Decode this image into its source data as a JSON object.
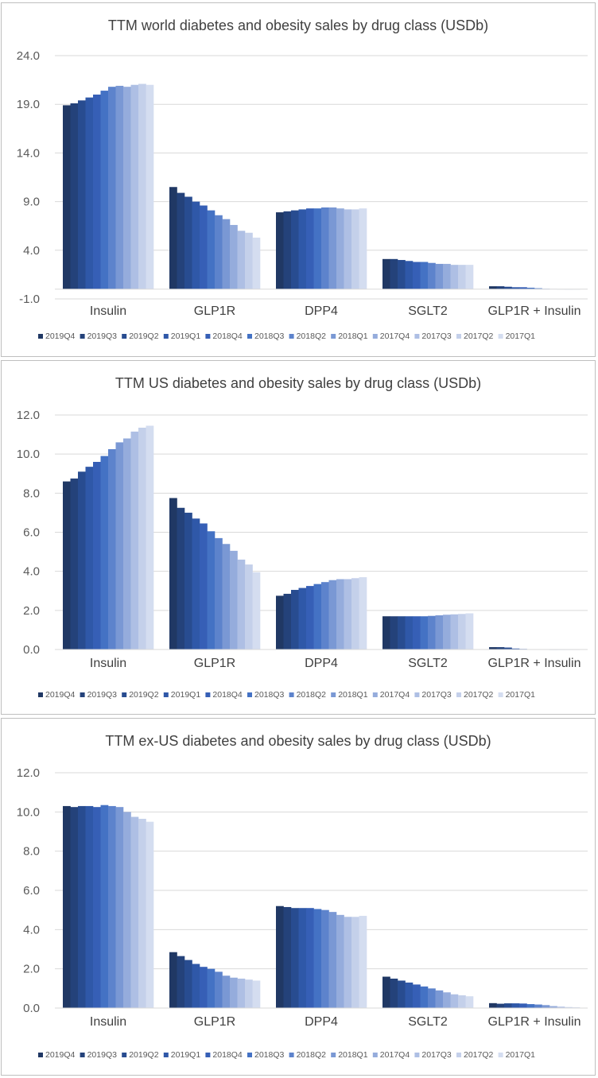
{
  "legend_labels": [
    "2019Q4",
    "2019Q3",
    "2019Q2",
    "2019Q1",
    "2018Q4",
    "2018Q3",
    "2018Q2",
    "2018Q1",
    "2017Q4",
    "2017Q3",
    "2017Q2",
    "2017Q1"
  ],
  "series_colors": [
    "#203864",
    "#24427a",
    "#284c90",
    "#2f58a8",
    "#365fb6",
    "#4472c4",
    "#5d83cc",
    "#7a98d4",
    "#95acdc",
    "#aebfe4",
    "#c4d0ea",
    "#d4ddf0"
  ],
  "chart_data": [
    {
      "type": "bar",
      "title": "TTM world diabetes and obesity sales by drug class (USDb)",
      "categories": [
        "Insulin",
        "GLP1R",
        "DPP4",
        "SGLT2",
        "GLP1R + Insulin"
      ],
      "ylim": [
        -1.0,
        24.0
      ],
      "yticks": [
        "24.0",
        "19.0",
        "14.0",
        "9.0",
        "4.0",
        "-1.0"
      ],
      "ytick_values": [
        24,
        19,
        14,
        9,
        4,
        -1
      ],
      "grid": true,
      "legend_position": "bottom",
      "series": [
        {
          "name": "2019Q4",
          "values": [
            18.9,
            10.5,
            7.9,
            3.1,
            0.3
          ]
        },
        {
          "name": "2019Q3",
          "values": [
            19.1,
            9.9,
            8.0,
            3.1,
            0.3
          ]
        },
        {
          "name": "2019Q2",
          "values": [
            19.4,
            9.5,
            8.1,
            3.0,
            0.25
          ]
        },
        {
          "name": "2019Q1",
          "values": [
            19.7,
            9.0,
            8.2,
            2.9,
            0.2
          ]
        },
        {
          "name": "2018Q4",
          "values": [
            20.0,
            8.6,
            8.3,
            2.8,
            0.2
          ]
        },
        {
          "name": "2018Q3",
          "values": [
            20.4,
            8.1,
            8.3,
            2.8,
            0.15
          ]
        },
        {
          "name": "2018Q2",
          "values": [
            20.8,
            7.6,
            8.4,
            2.7,
            0.1
          ]
        },
        {
          "name": "2018Q1",
          "values": [
            20.9,
            7.2,
            8.4,
            2.6,
            0.05
          ]
        },
        {
          "name": "2017Q4",
          "values": [
            20.8,
            6.6,
            8.3,
            2.6,
            0.03
          ]
        },
        {
          "name": "2017Q3",
          "values": [
            21.0,
            6.0,
            8.2,
            2.5,
            0.02
          ]
        },
        {
          "name": "2017Q2",
          "values": [
            21.1,
            5.8,
            8.2,
            2.5,
            0.01
          ]
        },
        {
          "name": "2017Q1",
          "values": [
            21.0,
            5.3,
            8.3,
            2.5,
            0.01
          ]
        }
      ]
    },
    {
      "type": "bar",
      "title": "TTM US diabetes and obesity sales by drug class (USDb)",
      "categories": [
        "Insulin",
        "GLP1R",
        "DPP4",
        "SGLT2",
        "GLP1R + Insulin"
      ],
      "ylim": [
        0.0,
        12.0
      ],
      "yticks": [
        "12.0",
        "10.0",
        "8.0",
        "6.0",
        "4.0",
        "2.0",
        "0.0"
      ],
      "ytick_values": [
        12,
        10,
        8,
        6,
        4,
        2,
        0
      ],
      "grid": true,
      "legend_position": "bottom",
      "series": [
        {
          "name": "2019Q4",
          "values": [
            8.6,
            7.75,
            2.75,
            1.7,
            0.12
          ]
        },
        {
          "name": "2019Q3",
          "values": [
            8.75,
            7.25,
            2.85,
            1.7,
            0.12
          ]
        },
        {
          "name": "2019Q2",
          "values": [
            9.1,
            7.0,
            3.05,
            1.7,
            0.1
          ]
        },
        {
          "name": "2019Q1",
          "values": [
            9.35,
            6.7,
            3.15,
            1.7,
            0.05
          ]
        },
        {
          "name": "2018Q4",
          "values": [
            9.6,
            6.45,
            3.25,
            1.7,
            0.03
          ]
        },
        {
          "name": "2018Q3",
          "values": [
            9.9,
            6.05,
            3.35,
            1.7,
            0.02
          ]
        },
        {
          "name": "2018Q2",
          "values": [
            10.25,
            5.7,
            3.45,
            1.72,
            0.01
          ]
        },
        {
          "name": "2018Q1",
          "values": [
            10.6,
            5.4,
            3.55,
            1.75,
            0.01
          ]
        },
        {
          "name": "2017Q4",
          "values": [
            10.8,
            5.05,
            3.6,
            1.78,
            0.0
          ]
        },
        {
          "name": "2017Q3",
          "values": [
            11.15,
            4.6,
            3.6,
            1.8,
            0.0
          ]
        },
        {
          "name": "2017Q2",
          "values": [
            11.35,
            4.35,
            3.65,
            1.82,
            0.0
          ]
        },
        {
          "name": "2017Q1",
          "values": [
            11.45,
            3.95,
            3.7,
            1.85,
            0.0
          ]
        }
      ]
    },
    {
      "type": "bar",
      "title": "TTM ex-US diabetes and obesity sales by drug class (USDb)",
      "categories": [
        "Insulin",
        "GLP1R",
        "DPP4",
        "SGLT2",
        "GLP1R + Insulin"
      ],
      "ylim": [
        0.0,
        12.0
      ],
      "yticks": [
        "12.0",
        "10.0",
        "8.0",
        "6.0",
        "4.0",
        "2.0",
        "0.0"
      ],
      "ytick_values": [
        12,
        10,
        8,
        6,
        4,
        2,
        0
      ],
      "grid": true,
      "legend_position": "bottom",
      "series": [
        {
          "name": "2019Q4",
          "values": [
            10.3,
            2.85,
            5.2,
            1.6,
            0.25
          ]
        },
        {
          "name": "2019Q3",
          "values": [
            10.25,
            2.65,
            5.15,
            1.5,
            0.22
          ]
        },
        {
          "name": "2019Q2",
          "values": [
            10.3,
            2.45,
            5.1,
            1.4,
            0.24
          ]
        },
        {
          "name": "2019Q1",
          "values": [
            10.3,
            2.25,
            5.1,
            1.3,
            0.24
          ]
        },
        {
          "name": "2018Q4",
          "values": [
            10.25,
            2.1,
            5.1,
            1.2,
            0.23
          ]
        },
        {
          "name": "2018Q3",
          "values": [
            10.35,
            2.0,
            5.05,
            1.1,
            0.2
          ]
        },
        {
          "name": "2018Q2",
          "values": [
            10.3,
            1.85,
            5.0,
            1.0,
            0.18
          ]
        },
        {
          "name": "2018Q1",
          "values": [
            10.25,
            1.65,
            4.9,
            0.9,
            0.15
          ]
        },
        {
          "name": "2017Q4",
          "values": [
            10.0,
            1.55,
            4.75,
            0.8,
            0.1
          ]
        },
        {
          "name": "2017Q3",
          "values": [
            9.75,
            1.5,
            4.65,
            0.7,
            0.07
          ]
        },
        {
          "name": "2017Q2",
          "values": [
            9.65,
            1.45,
            4.65,
            0.65,
            0.05
          ]
        },
        {
          "name": "2017Q1",
          "values": [
            9.5,
            1.4,
            4.7,
            0.6,
            0.04
          ]
        }
      ]
    }
  ]
}
